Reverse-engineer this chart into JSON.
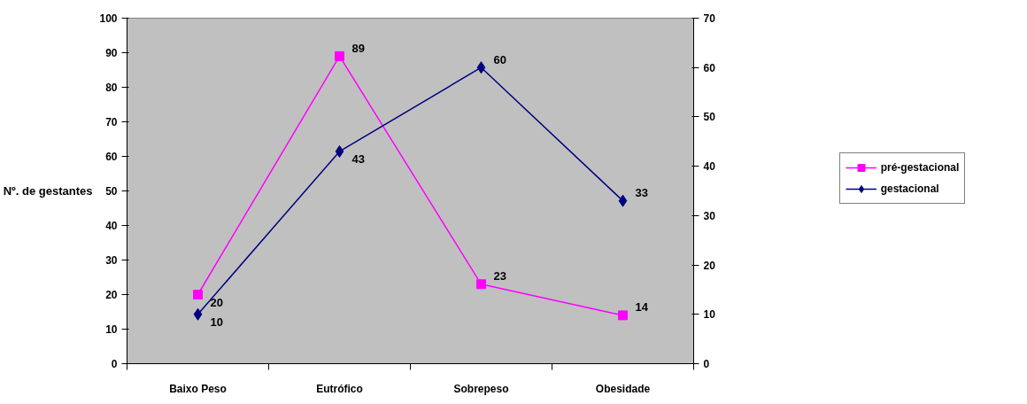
{
  "chart_data": {
    "type": "line",
    "ylabel": "Nº. de gestantes",
    "categories": [
      "Baixo Peso",
      "Eutrófico",
      "Sobrepeso",
      "Obesidade"
    ],
    "series": [
      {
        "name": "pré-gestacional",
        "color": "#ff00ff",
        "marker": "square",
        "values": [
          20,
          89,
          23,
          14
        ]
      },
      {
        "name": "gestacional",
        "color": "#000080",
        "marker": "diamond",
        "axis": "y2",
        "values": [
          10,
          43,
          60,
          33
        ]
      }
    ],
    "ylim": [
      0,
      100
    ],
    "yticks": [
      0,
      10,
      20,
      30,
      40,
      50,
      60,
      70,
      80,
      90,
      100
    ],
    "y2lim": [
      0,
      70
    ],
    "y2ticks": [
      0,
      10,
      20,
      30,
      40,
      50,
      60,
      70
    ],
    "data_labels": true,
    "legend": "right",
    "grid": false,
    "line_style": "solid"
  }
}
